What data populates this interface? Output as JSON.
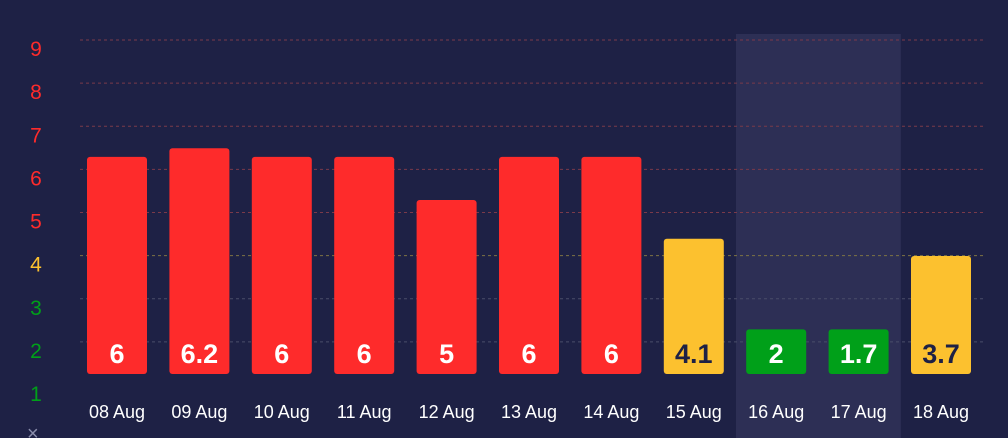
{
  "chart_data": {
    "type": "bar",
    "categories": [
      "08 Aug",
      "09 Aug",
      "10 Aug",
      "11 Aug",
      "12 Aug",
      "13 Aug",
      "14 Aug",
      "15 Aug",
      "16 Aug",
      "17 Aug",
      "18 Aug"
    ],
    "values": [
      6,
      6.2,
      6,
      6,
      5,
      6,
      6,
      4.1,
      2,
      1.7,
      3.7
    ],
    "value_labels": [
      "6",
      "6.2",
      "6",
      "6",
      "5",
      "6",
      "6",
      "4.1",
      "2",
      "1.7",
      "3.7"
    ],
    "bar_colors": [
      "#fe2b2b",
      "#fe2b2b",
      "#fe2b2b",
      "#fe2b2b",
      "#fe2b2b",
      "#fe2b2b",
      "#fe2b2b",
      "#fcc12f",
      "#00a019",
      "#00a019",
      "#fcc12f"
    ],
    "label_colors": [
      "#ffffff",
      "#ffffff",
      "#ffffff",
      "#ffffff",
      "#ffffff",
      "#ffffff",
      "#ffffff",
      "#1e2145",
      "#ffffff",
      "#ffffff",
      "#1e2145"
    ],
    "highlighted_categories": [
      "16 Aug",
      "17 Aug"
    ],
    "y_ticks": [
      "1",
      "2",
      "3",
      "4",
      "5",
      "6",
      "7",
      "8",
      "9"
    ],
    "y_tick_colors": [
      "#00a019",
      "#00a019",
      "#00a019",
      "#fcc12f",
      "#fe2b2b",
      "#fe2b2b",
      "#fe2b2b",
      "#fe2b2b",
      "#fe2b2b"
    ],
    "ylim": [
      1,
      9
    ],
    "grid": true,
    "title": "",
    "xlabel": "",
    "ylabel": ""
  },
  "colors": {
    "background": "#1e2145",
    "highlight": "#2d2f55",
    "grid_high": "#7a3a4a",
    "grid_mid": "#7d7344",
    "grid_low": "#4a4d6a"
  },
  "axis_glyph": "×"
}
